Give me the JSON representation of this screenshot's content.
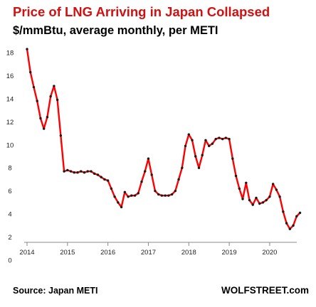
{
  "header": {
    "title": "Price of LNG Arriving in Japan Collapsed",
    "subtitle": "$/mmBtu, average monthly, per METI"
  },
  "footer": {
    "source": "Source: Japan METI",
    "credit": "WOLFSTREET.com"
  },
  "colors": {
    "title": "#d21010",
    "line": "#ff0000",
    "marker": "#1a1a1a",
    "axis": "#888888"
  },
  "chart_data": {
    "type": "line",
    "title": "Price of LNG Arriving in Japan Collapsed",
    "subtitle": "$/mmBtu, average monthly, per METI",
    "xlabel": "",
    "ylabel": "",
    "grid": false,
    "ylim": [
      0,
      18
    ],
    "xlim": [
      2014.0,
      2020.6
    ],
    "yticks": [
      0,
      2,
      4,
      6,
      8,
      10,
      12,
      14,
      16,
      18
    ],
    "xticks": [
      "2014",
      "2015",
      "2016",
      "2017",
      "2018",
      "2019",
      "2020"
    ],
    "series": [
      {
        "start": 2014.0,
        "step": 0.0833333,
        "values": [
          18.3,
          16.3,
          15.0,
          13.8,
          12.3,
          11.4,
          12.4,
          14.2,
          15.1,
          13.9,
          10.8,
          7.7,
          7.8,
          7.7,
          7.6,
          7.6,
          7.7,
          7.6,
          7.7,
          7.7,
          7.5,
          7.4,
          7.2,
          7.0,
          6.9,
          6.2,
          5.5,
          5.0,
          4.6,
          5.9,
          5.5,
          5.6,
          5.6,
          5.8,
          6.8,
          7.7,
          8.8,
          7.4,
          6.0,
          5.7,
          5.6,
          5.6,
          5.6,
          5.7,
          6.0,
          7.0,
          8.0,
          9.9,
          10.9,
          10.4,
          9.0,
          8.0,
          9.1,
          10.4,
          9.9,
          10.1,
          10.5,
          10.6,
          10.5,
          10.6,
          10.5,
          8.8,
          7.3,
          6.2,
          5.3,
          6.7,
          5.2,
          4.8,
          5.4,
          4.9,
          5.0,
          5.2,
          5.5,
          6.6,
          6.1,
          5.5,
          4.2,
          3.2,
          2.7,
          3.0,
          3.8,
          4.1
        ]
      }
    ]
  }
}
